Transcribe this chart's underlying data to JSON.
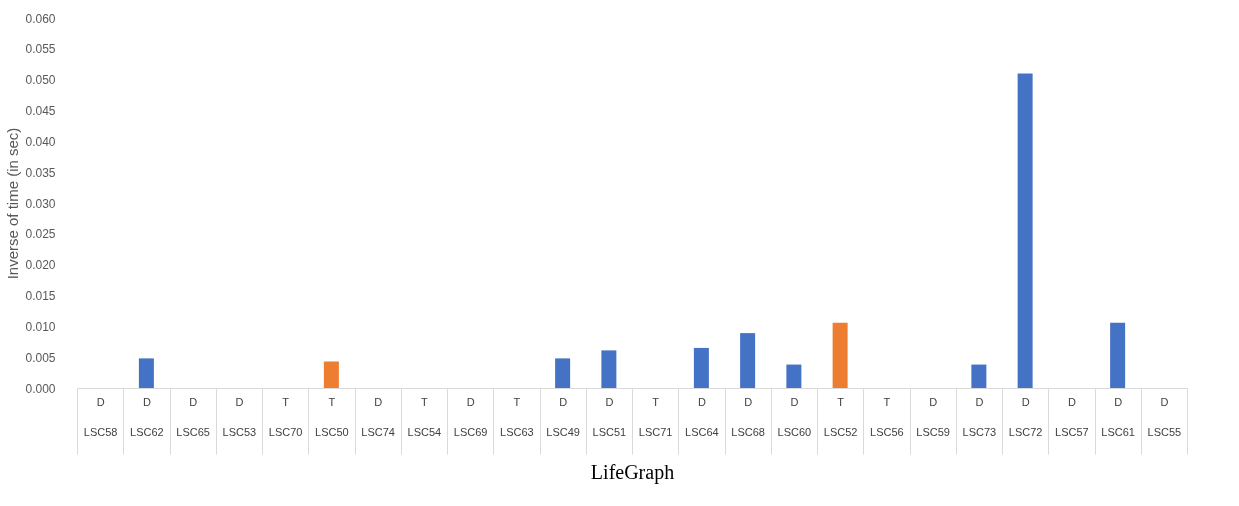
{
  "chart_data": {
    "type": "bar",
    "xlabel": "LifeGraph",
    "ylabel": "Inverse of time (in sec)",
    "categories": [
      "D\nLSC58",
      "D\nLSC62",
      "D\nLSC65",
      "D\nLSC53",
      "T\nLSC70",
      "T\nLSC50",
      "D\nLSC74",
      "T\nLSC54",
      "D\nLSC69",
      "T\nLSC63",
      "D\nLSC49",
      "D\nLSC51",
      "T\nLSC71",
      "D\nLSC64",
      "D\nLSC68",
      "D\nLSC60",
      "T\nLSC52",
      "T\nLSC56",
      "D\nLSC59",
      "D\nLSC73",
      "D\nLSC72",
      "D\nLSC57",
      "D\nLSC61",
      "D\nLSC55"
    ],
    "values": [
      0,
      0.0048,
      0,
      0,
      0,
      0.0043,
      0,
      0,
      0,
      0,
      0.0048,
      0.0061,
      0,
      0.0065,
      0.0089,
      0.0038,
      0.0106,
      0,
      0,
      0.0038,
      0.051,
      0,
      0.0106,
      0
    ],
    "colors": [
      "#4472c4",
      "#4472c4",
      "#4472c4",
      "#4472c4",
      "#ed7d31",
      "#ed7d31",
      "#4472c4",
      "#ed7d31",
      "#4472c4",
      "#ed7d31",
      "#4472c4",
      "#4472c4",
      "#ed7d31",
      "#4472c4",
      "#4472c4",
      "#4472c4",
      "#ed7d31",
      "#ed7d31",
      "#4472c4",
      "#4472c4",
      "#4472c4",
      "#4472c4",
      "#4472c4",
      "#4472c4"
    ],
    "ylim": [
      0,
      0.06
    ],
    "yticks": [
      {
        "value": 0,
        "label": "0.000"
      },
      {
        "value": 0.005,
        "label": "0.005"
      },
      {
        "value": 0.01,
        "label": "0.010"
      },
      {
        "value": 0.015,
        "label": "0.015"
      },
      {
        "value": 0.02,
        "label": "0.020"
      },
      {
        "value": 0.025,
        "label": "0.025"
      },
      {
        "value": 0.03,
        "label": "0.030"
      },
      {
        "value": 0.035,
        "label": "0.035"
      },
      {
        "value": 0.04,
        "label": "0.040"
      },
      {
        "value": 0.045,
        "label": "0.045"
      },
      {
        "value": 0.05,
        "label": "0.050"
      },
      {
        "value": 0.055,
        "label": "0.055"
      },
      {
        "value": 0.06,
        "label": "0.060"
      }
    ],
    "grid": false
  }
}
